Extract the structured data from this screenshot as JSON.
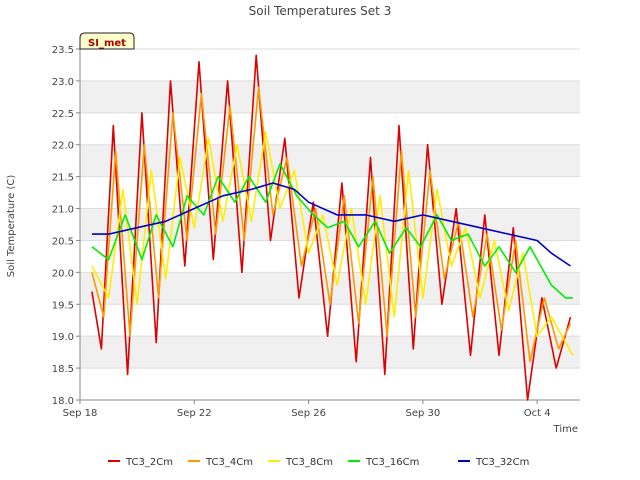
{
  "chart_data": {
    "type": "line",
    "title": "Soil Temperatures Set 3",
    "xlabel": "Time",
    "ylabel": "Soil Temperature (C)",
    "badge": "SI_met",
    "ylim": [
      18.0,
      23.5
    ],
    "xlim": [
      "2023-09-18",
      "2023-10-05T12:00"
    ],
    "y_ticks": [
      18.0,
      18.5,
      19.0,
      19.5,
      20.0,
      20.5,
      21.0,
      21.5,
      22.0,
      22.5,
      23.0,
      23.5
    ],
    "y_tick_labels": [
      "18.0",
      "18.5",
      "19.0",
      "19.5",
      "20.0",
      "20.5",
      "21.0",
      "21.5",
      "22.0",
      "22.5",
      "23.0",
      "23.5"
    ],
    "x_ticks": [
      "2023-09-18",
      "2023-09-22",
      "2023-09-26",
      "2023-09-30",
      "2023-10-04"
    ],
    "x_tick_labels": [
      "Sep 18",
      "Sep 22",
      "Sep 26",
      "Sep 30",
      "Oct 4"
    ],
    "grid": true,
    "legend_placement": "bottom",
    "series": [
      {
        "name": "TC3_2Cm",
        "color": "#dd0000",
        "x": [
          "2023-09-18T10:00",
          "2023-09-18T18:00",
          "2023-09-19T04:00",
          "2023-09-19T16:00",
          "2023-09-20T04:00",
          "2023-09-20T16:00",
          "2023-09-21T04:00",
          "2023-09-21T16:00",
          "2023-09-22T04:00",
          "2023-09-22T16:00",
          "2023-09-23T04:00",
          "2023-09-23T16:00",
          "2023-09-24T04:00",
          "2023-09-24T16:00",
          "2023-09-25T04:00",
          "2023-09-25T16:00",
          "2023-09-26T04:00",
          "2023-09-26T16:00",
          "2023-09-27T04:00",
          "2023-09-27T16:00",
          "2023-09-28T04:00",
          "2023-09-28T16:00",
          "2023-09-29T04:00",
          "2023-09-29T16:00",
          "2023-09-30T04:00",
          "2023-09-30T16:00",
          "2023-10-01T04:00",
          "2023-10-01T16:00",
          "2023-10-02T04:00",
          "2023-10-02T16:00",
          "2023-10-03T04:00",
          "2023-10-03T16:00",
          "2023-10-04T04:00",
          "2023-10-04T16:00",
          "2023-10-05T04:00"
        ],
        "values": [
          19.7,
          18.8,
          22.3,
          18.4,
          22.5,
          18.9,
          23.0,
          20.1,
          23.3,
          20.2,
          23.0,
          20.0,
          23.4,
          20.5,
          22.1,
          19.6,
          21.1,
          19.0,
          21.4,
          18.6,
          21.8,
          18.4,
          22.3,
          18.8,
          22.0,
          19.5,
          21.0,
          18.7,
          20.9,
          18.7,
          20.7,
          18.0,
          19.6,
          18.5,
          19.3
        ]
      },
      {
        "name": "TC3_4Cm",
        "color": "#ff9900",
        "x": [
          "2023-09-18T10:00",
          "2023-09-18T20:00",
          "2023-09-19T06:00",
          "2023-09-19T18:00",
          "2023-09-20T06:00",
          "2023-09-20T18:00",
          "2023-09-21T06:00",
          "2023-09-21T18:00",
          "2023-09-22T06:00",
          "2023-09-22T18:00",
          "2023-09-23T06:00",
          "2023-09-23T18:00",
          "2023-09-24T06:00",
          "2023-09-24T18:00",
          "2023-09-25T06:00",
          "2023-09-25T18:00",
          "2023-09-26T06:00",
          "2023-09-26T18:00",
          "2023-09-27T06:00",
          "2023-09-27T18:00",
          "2023-09-28T06:00",
          "2023-09-28T18:00",
          "2023-09-29T06:00",
          "2023-09-29T18:00",
          "2023-09-30T06:00",
          "2023-09-30T18:00",
          "2023-10-01T06:00",
          "2023-10-01T18:00",
          "2023-10-02T06:00",
          "2023-10-02T18:00",
          "2023-10-03T06:00",
          "2023-10-03T18:00",
          "2023-10-04T06:00",
          "2023-10-04T18:00",
          "2023-10-05T04:00"
        ],
        "values": [
          20.0,
          19.3,
          21.9,
          19.0,
          22.0,
          19.6,
          22.5,
          20.5,
          22.8,
          20.6,
          22.6,
          20.5,
          22.9,
          20.9,
          21.8,
          20.1,
          21.0,
          19.5,
          21.2,
          19.2,
          21.5,
          19.0,
          21.9,
          19.3,
          21.6,
          19.9,
          20.8,
          19.3,
          20.6,
          19.1,
          20.5,
          18.6,
          19.6,
          18.8,
          19.2
        ]
      },
      {
        "name": "TC3_8Cm",
        "color": "#ffee00",
        "x": [
          "2023-09-18T10:00",
          "2023-09-19T00:00",
          "2023-09-19T12:00",
          "2023-09-20T00:00",
          "2023-09-20T12:00",
          "2023-09-21T00:00",
          "2023-09-21T12:00",
          "2023-09-22T00:00",
          "2023-09-22T12:00",
          "2023-09-23T00:00",
          "2023-09-23T12:00",
          "2023-09-24T00:00",
          "2023-09-24T12:00",
          "2023-09-25T00:00",
          "2023-09-25T12:00",
          "2023-09-26T00:00",
          "2023-09-26T12:00",
          "2023-09-27T00:00",
          "2023-09-27T12:00",
          "2023-09-28T00:00",
          "2023-09-28T12:00",
          "2023-09-29T00:00",
          "2023-09-29T12:00",
          "2023-09-30T00:00",
          "2023-09-30T12:00",
          "2023-10-01T00:00",
          "2023-10-01T12:00",
          "2023-10-02T00:00",
          "2023-10-02T12:00",
          "2023-10-03T00:00",
          "2023-10-03T12:00",
          "2023-10-04T00:00",
          "2023-10-04T12:00",
          "2023-10-05T00:00",
          "2023-10-05T06:00"
        ],
        "values": [
          20.1,
          19.6,
          21.3,
          19.5,
          21.6,
          19.9,
          21.8,
          20.7,
          22.1,
          20.8,
          22.0,
          20.8,
          22.2,
          21.0,
          21.6,
          20.3,
          20.9,
          19.8,
          21.0,
          19.5,
          21.2,
          19.3,
          21.6,
          19.6,
          21.3,
          20.1,
          20.7,
          19.6,
          20.5,
          19.4,
          20.3,
          19.0,
          19.3,
          18.9,
          18.7
        ]
      },
      {
        "name": "TC3_16Cm",
        "color": "#00ee00",
        "x": [
          "2023-09-18T10:00",
          "2023-09-19T00:00",
          "2023-09-19T14:00",
          "2023-09-20T04:00",
          "2023-09-20T16:00",
          "2023-09-21T06:00",
          "2023-09-21T18:00",
          "2023-09-22T08:00",
          "2023-09-22T20:00",
          "2023-09-23T10:00",
          "2023-09-23T22:00",
          "2023-09-24T12:00",
          "2023-09-25T00:00",
          "2023-09-25T14:00",
          "2023-09-26T04:00",
          "2023-09-26T16:00",
          "2023-09-27T06:00",
          "2023-09-27T18:00",
          "2023-09-28T08:00",
          "2023-09-28T20:00",
          "2023-09-29T10:00",
          "2023-09-29T22:00",
          "2023-09-30T12:00",
          "2023-10-01T00:00",
          "2023-10-01T14:00",
          "2023-10-02T04:00",
          "2023-10-02T16:00",
          "2023-10-03T06:00",
          "2023-10-03T18:00",
          "2023-10-04T12:00",
          "2023-10-05T00:00",
          "2023-10-05T06:00"
        ],
        "values": [
          20.4,
          20.2,
          20.9,
          20.2,
          20.9,
          20.4,
          21.2,
          20.9,
          21.5,
          21.1,
          21.5,
          21.1,
          21.7,
          21.2,
          20.9,
          20.7,
          20.8,
          20.4,
          20.8,
          20.3,
          20.7,
          20.4,
          20.9,
          20.5,
          20.6,
          20.1,
          20.4,
          20.0,
          20.4,
          19.8,
          19.6,
          19.6
        ]
      },
      {
        "name": "TC3_32Cm",
        "color": "#0000cc",
        "x": [
          "2023-09-18T10:00",
          "2023-09-19T00:00",
          "2023-09-20T00:00",
          "2023-09-21T00:00",
          "2023-09-22T00:00",
          "2023-09-23T00:00",
          "2023-09-24T00:00",
          "2023-09-24T18:00",
          "2023-09-25T12:00",
          "2023-09-26T00:00",
          "2023-09-27T00:00",
          "2023-09-28T00:00",
          "2023-09-29T00:00",
          "2023-09-30T00:00",
          "2023-10-01T00:00",
          "2023-10-02T00:00",
          "2023-10-03T00:00",
          "2023-10-04T00:00",
          "2023-10-04T12:00",
          "2023-10-05T04:00"
        ],
        "values": [
          20.6,
          20.6,
          20.7,
          20.8,
          21.0,
          21.2,
          21.3,
          21.4,
          21.3,
          21.1,
          20.9,
          20.9,
          20.8,
          20.9,
          20.8,
          20.7,
          20.6,
          20.5,
          20.3,
          20.1
        ]
      }
    ]
  }
}
